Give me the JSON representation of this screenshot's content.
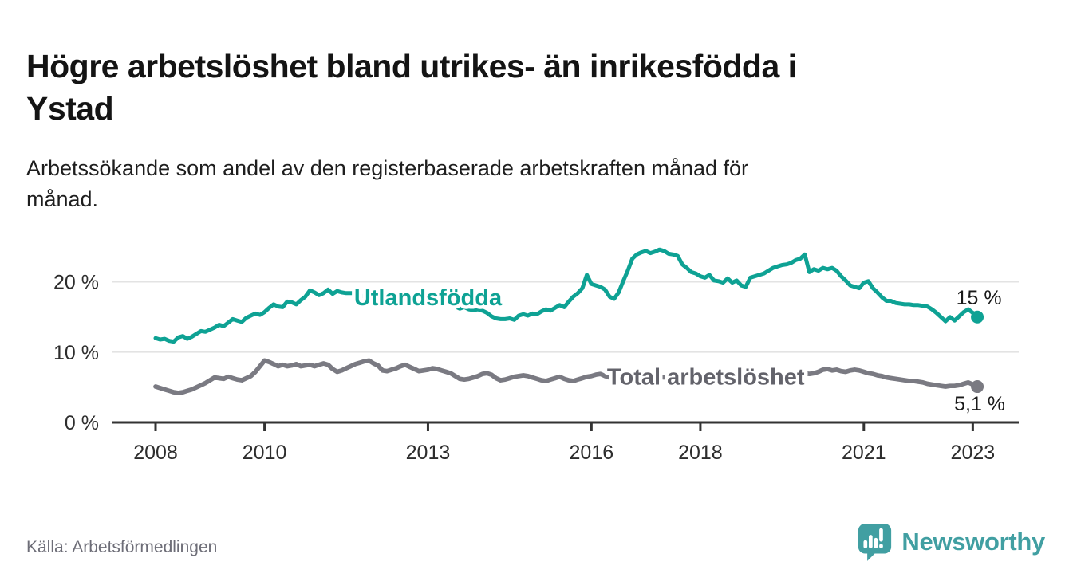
{
  "header": {
    "title": "Högre arbetslöshet bland utrikes- än inrikesfödda i\nYstad",
    "subtitle": "Arbetssökande som andel av den registerbaserade arbetskraften månad för\nmånad."
  },
  "footer": {
    "source": "Källa: Arbetsförmedlingen",
    "logo_text": "Newsworthy",
    "logo_icon": "newsworthy-speech-bubble-bar-chart-icon",
    "logo_color": "#419fa2"
  },
  "axis": {
    "text_color": "#2d2d2d",
    "line_color": "#333333",
    "grid_color": "#e3e3e3"
  },
  "chart_data": {
    "type": "line",
    "x_unit": "month",
    "x_start": "2008-01",
    "x_end": "2023-02",
    "grid": true,
    "ylim": [
      0,
      27
    ],
    "x_ticks": [
      {
        "year": 2008,
        "label": "2008"
      },
      {
        "year": 2010,
        "label": "2010"
      },
      {
        "year": 2013,
        "label": "2013"
      },
      {
        "year": 2016,
        "label": "2016"
      },
      {
        "year": 2018,
        "label": "2018"
      },
      {
        "year": 2021,
        "label": "2021"
      },
      {
        "year": 2023,
        "label": "2023"
      }
    ],
    "y_ticks": [
      {
        "value": 0,
        "label": "0 %"
      },
      {
        "value": 10,
        "label": "10 %"
      },
      {
        "value": 20,
        "label": "20 %"
      }
    ],
    "series": [
      {
        "name": "Utlandsfödda",
        "color": "#0ea294",
        "label_color": "#0ea294",
        "end_label": "15 %",
        "last_value": 15.0,
        "label_anchor": {
          "year": 2013.0,
          "value": 17.8
        },
        "values": [
          12.0,
          11.8,
          11.9,
          11.6,
          11.5,
          12.1,
          12.3,
          11.9,
          12.2,
          12.6,
          13.0,
          12.9,
          13.2,
          13.5,
          13.9,
          13.7,
          14.2,
          14.7,
          14.5,
          14.3,
          14.9,
          15.2,
          15.5,
          15.3,
          15.7,
          16.3,
          16.8,
          16.5,
          16.4,
          17.2,
          17.1,
          16.8,
          17.4,
          17.9,
          18.8,
          18.5,
          18.1,
          18.4,
          18.9,
          18.3,
          18.7,
          18.5,
          18.4,
          18.4,
          18.4,
          18.1,
          17.9,
          17.8,
          18.0,
          18.3,
          18.6,
          18.3,
          18.0,
          18.2,
          17.8,
          17.9,
          18.1,
          17.8,
          17.6,
          17.4,
          17.5,
          17.7,
          17.6,
          17.3,
          17.0,
          16.8,
          16.5,
          16.2,
          16.4,
          16.1,
          16.0,
          16.1,
          15.9,
          15.6,
          15.1,
          14.8,
          14.7,
          14.7,
          14.8,
          14.6,
          15.2,
          15.4,
          15.2,
          15.5,
          15.4,
          15.8,
          16.1,
          15.9,
          16.3,
          16.7,
          16.4,
          17.2,
          17.9,
          18.4,
          19.1,
          21.0,
          19.7,
          19.5,
          19.3,
          18.9,
          17.9,
          17.6,
          18.5,
          20.1,
          21.6,
          23.3,
          23.9,
          24.2,
          24.4,
          24.1,
          24.3,
          24.6,
          24.4,
          24.0,
          23.9,
          23.7,
          22.5,
          22.0,
          21.4,
          21.2,
          20.8,
          20.6,
          21.0,
          20.2,
          20.1,
          19.9,
          20.5,
          19.9,
          20.2,
          19.5,
          19.3,
          20.6,
          20.8,
          21.0,
          21.2,
          21.6,
          22.0,
          22.2,
          22.4,
          22.5,
          22.7,
          23.1,
          23.3,
          23.9,
          21.4,
          21.8,
          21.6,
          22.0,
          21.8,
          22.0,
          21.6,
          20.8,
          20.2,
          19.5,
          19.3,
          19.1,
          19.9,
          20.1,
          19.1,
          18.5,
          17.8,
          17.3,
          17.3,
          17.0,
          16.9,
          16.8,
          16.8,
          16.7,
          16.7,
          16.6,
          16.5,
          16.1,
          15.6,
          15.0,
          14.4,
          15.0,
          14.5,
          15.1,
          15.7,
          16.1,
          15.6,
          15.0
        ]
      },
      {
        "name": "Total arbetslöshet",
        "color": "#7a7a82",
        "label_color": "#63636b",
        "end_label": "5,1 %",
        "last_value": 5.1,
        "label_anchor": {
          "year": 2018.1,
          "value": 6.5
        },
        "values": [
          5.1,
          4.9,
          4.7,
          4.5,
          4.3,
          4.2,
          4.3,
          4.5,
          4.7,
          5.0,
          5.3,
          5.6,
          6.0,
          6.4,
          6.3,
          6.2,
          6.5,
          6.3,
          6.1,
          6.0,
          6.3,
          6.6,
          7.2,
          8.0,
          8.8,
          8.6,
          8.3,
          8.0,
          8.2,
          8.0,
          8.1,
          8.3,
          8.0,
          8.1,
          8.2,
          8.0,
          8.2,
          8.4,
          8.2,
          7.6,
          7.2,
          7.4,
          7.7,
          8.0,
          8.3,
          8.5,
          8.7,
          8.8,
          8.4,
          8.1,
          7.4,
          7.3,
          7.5,
          7.7,
          8.0,
          8.2,
          7.9,
          7.6,
          7.3,
          7.4,
          7.5,
          7.7,
          7.6,
          7.4,
          7.2,
          7.0,
          6.6,
          6.2,
          6.1,
          6.2,
          6.4,
          6.6,
          6.9,
          7.0,
          6.8,
          6.3,
          6.0,
          6.1,
          6.3,
          6.5,
          6.6,
          6.7,
          6.6,
          6.4,
          6.2,
          6.0,
          5.9,
          6.1,
          6.3,
          6.5,
          6.2,
          6.0,
          5.9,
          6.1,
          6.3,
          6.5,
          6.6,
          6.8,
          6.9,
          6.6,
          6.4,
          6.3,
          6.4,
          6.5,
          6.6,
          6.5,
          6.4,
          6.3,
          6.4,
          6.5,
          6.6,
          6.5,
          6.4,
          6.3,
          6.2,
          6.3,
          6.4,
          6.3,
          6.2,
          6.1,
          6.2,
          6.4,
          6.5,
          6.4,
          6.3,
          6.2,
          6.3,
          6.4,
          6.5,
          6.4,
          6.3,
          6.4,
          6.5,
          6.7,
          6.9,
          6.8,
          6.7,
          6.8,
          6.9,
          7.0,
          7.1,
          7.0,
          6.9,
          7.0,
          6.9,
          7.0,
          7.2,
          7.5,
          7.6,
          7.4,
          7.5,
          7.3,
          7.2,
          7.4,
          7.5,
          7.4,
          7.2,
          7.0,
          6.9,
          6.7,
          6.6,
          6.4,
          6.3,
          6.2,
          6.1,
          6.0,
          5.9,
          5.9,
          5.8,
          5.7,
          5.5,
          5.4,
          5.3,
          5.2,
          5.1,
          5.2,
          5.2,
          5.3,
          5.5,
          5.7,
          5.4,
          5.1
        ]
      }
    ]
  }
}
